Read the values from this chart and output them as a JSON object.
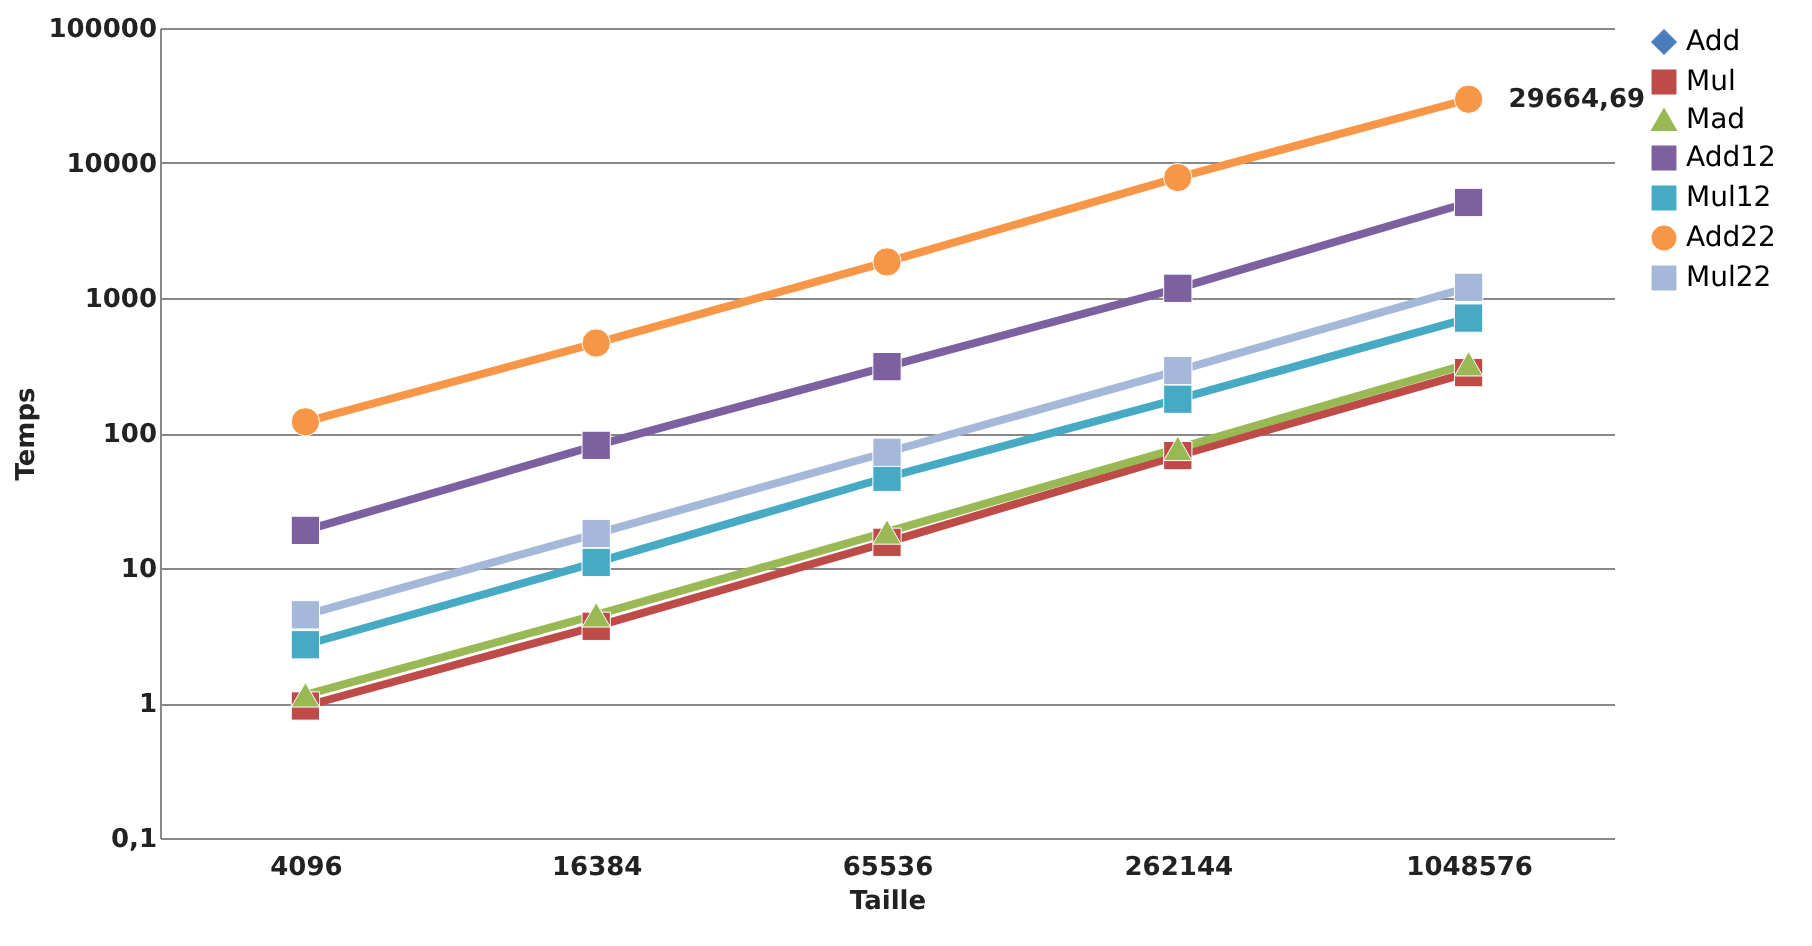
{
  "chart_data": {
    "type": "line",
    "xlabel": "Taille",
    "ylabel": "Temps",
    "categories": [
      "4096",
      "16384",
      "65536",
      "262144",
      "1048576"
    ],
    "series": [
      {
        "name": "Add",
        "color": "#4a7ebb",
        "marker": "diamond",
        "values": [
          null,
          null,
          null,
          null,
          null
        ]
      },
      {
        "name": "Mul",
        "color": "#be4b48",
        "marker": "square",
        "values": [
          0.95,
          3.7,
          15.5,
          68,
          280
        ]
      },
      {
        "name": "Mad",
        "color": "#98b954",
        "marker": "triangle",
        "values": [
          1.15,
          4.5,
          18.5,
          77,
          326
        ]
      },
      {
        "name": "Add12",
        "color": "#7d60a0",
        "marker": "square",
        "values": [
          19,
          81,
          310,
          1180,
          5100
        ]
      },
      {
        "name": "Mul12",
        "color": "#46aac5",
        "marker": "square",
        "values": [
          2.7,
          11,
          47,
          178,
          710
        ]
      },
      {
        "name": "Add22",
        "color": "#f79646",
        "marker": "circle",
        "values": [
          121,
          464,
          1850,
          7800,
          29664.69
        ]
      },
      {
        "name": "Mul22",
        "color": "#a5b8d9",
        "marker": "square",
        "values": [
          4.5,
          18,
          72,
          290,
          1200
        ]
      }
    ],
    "log": "y",
    "ylim": [
      0.1,
      100000
    ],
    "yticks": [
      {
        "value": 0.1,
        "label": "0,1"
      },
      1,
      10,
      100,
      1000,
      10000,
      100000
    ],
    "grid": "y",
    "legend": "right",
    "annotations": [
      {
        "text": "29664,69",
        "x": "1048576",
        "y": 29664.69
      }
    ]
  }
}
